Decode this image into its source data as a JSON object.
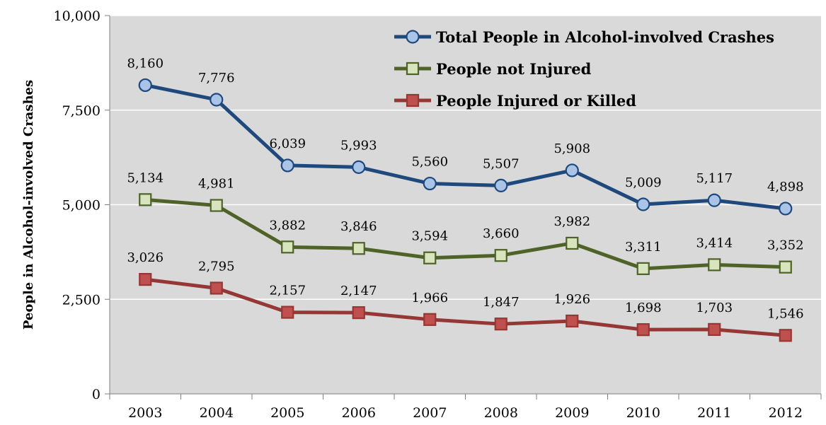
{
  "chart_data": {
    "type": "line",
    "title": "",
    "xlabel": "",
    "ylabel": "People in Alcohol-involved Crashes",
    "categories": [
      "2003",
      "2004",
      "2005",
      "2006",
      "2007",
      "2008",
      "2009",
      "2010",
      "2011",
      "2012"
    ],
    "ylim": [
      0,
      10000
    ],
    "yticks": [
      0,
      2500,
      5000,
      7500,
      10000
    ],
    "ytick_labels": [
      "0",
      "2,500",
      "5,000",
      "7,500",
      "10,000"
    ],
    "grid": true,
    "legend_position": "top-right",
    "plot_background": "#d9d9d9",
    "series": [
      {
        "name": "Total People in Alcohol-involved Crashes",
        "values": [
          8160,
          7776,
          6039,
          5993,
          5560,
          5507,
          5908,
          5009,
          5117,
          4898
        ],
        "labels": [
          "8,160",
          "7,776",
          "6,039",
          "5,993",
          "5,560",
          "5,507",
          "5,908",
          "5,009",
          "5,117",
          "4,898"
        ],
        "marker": "circle",
        "line_color": "#1f497d",
        "marker_fill": "#a9c4e6"
      },
      {
        "name": "People not Injured",
        "values": [
          5134,
          4981,
          3882,
          3846,
          3594,
          3660,
          3982,
          3311,
          3414,
          3352
        ],
        "labels": [
          "5,134",
          "4,981",
          "3,882",
          "3,846",
          "3,594",
          "3,660",
          "3,982",
          "3,311",
          "3,414",
          "3,352"
        ],
        "marker": "square",
        "line_color": "#4f6228",
        "marker_fill": "#d7e4bd"
      },
      {
        "name": "People Injured or Killed",
        "values": [
          3026,
          2795,
          2157,
          2147,
          1966,
          1847,
          1926,
          1698,
          1703,
          1546
        ],
        "labels": [
          "3,026",
          "2,795",
          "2,157",
          "2,147",
          "1,966",
          "1,847",
          "1,926",
          "1,698",
          "1,703",
          "1,546"
        ],
        "marker": "square",
        "line_color": "#953735",
        "marker_fill": "#c0504d"
      }
    ]
  }
}
